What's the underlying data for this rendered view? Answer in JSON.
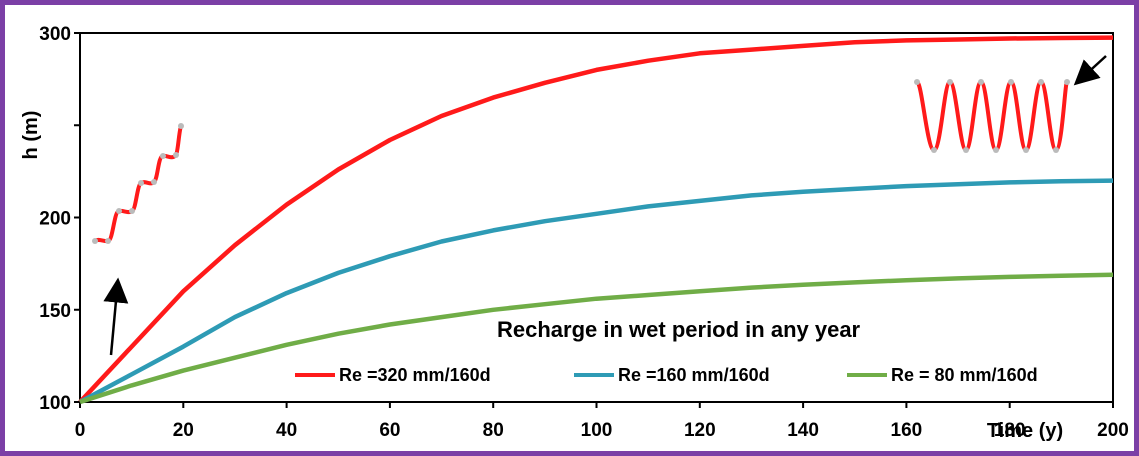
{
  "chart_data": {
    "type": "line",
    "xlabel": "Time (y)",
    "ylabel": "h (m)",
    "xlim": [
      0,
      200
    ],
    "ylim": [
      100,
      300
    ],
    "x_ticks": [
      "0",
      "20",
      "40",
      "60",
      "80",
      "100",
      "120",
      "140",
      "160",
      "180",
      "200"
    ],
    "y_ticks": [
      "100",
      "150",
      "200",
      "300"
    ],
    "annotation": "Recharge in wet period in any year",
    "grid": false,
    "legend_position": "bottom-right",
    "series": [
      {
        "name": "Re =320 mm/160d",
        "color": "#ff1a1a",
        "x": [
          0,
          10,
          20,
          30,
          40,
          50,
          60,
          70,
          80,
          90,
          100,
          110,
          120,
          130,
          140,
          150,
          160,
          170,
          180,
          190,
          200
        ],
        "y": [
          100,
          130,
          160,
          185,
          207,
          226,
          242,
          255,
          265,
          273,
          280,
          285,
          289,
          291,
          293,
          295,
          296,
          296.5,
          297,
          297.3,
          297.5
        ]
      },
      {
        "name": "Re =160 mm/160d",
        "color": "#2e9bb5",
        "x": [
          0,
          10,
          20,
          30,
          40,
          50,
          60,
          70,
          80,
          90,
          100,
          110,
          120,
          130,
          140,
          150,
          160,
          170,
          180,
          190,
          200
        ],
        "y": [
          100,
          115,
          130,
          146,
          159,
          170,
          179,
          187,
          193,
          198,
          202,
          206,
          209,
          212,
          214,
          215.5,
          217,
          218,
          219,
          219.6,
          220
        ]
      },
      {
        "name": "Re = 80 mm/160d",
        "color": "#70ad47",
        "x": [
          0,
          10,
          20,
          30,
          40,
          50,
          60,
          70,
          80,
          90,
          100,
          110,
          120,
          130,
          140,
          150,
          160,
          170,
          180,
          190,
          200
        ],
        "y": [
          100,
          109,
          117,
          124,
          131,
          137,
          142,
          146,
          150,
          153,
          156,
          158,
          160,
          162,
          163.5,
          164.8,
          166,
          167,
          167.8,
          168.4,
          169
        ]
      }
    ]
  }
}
